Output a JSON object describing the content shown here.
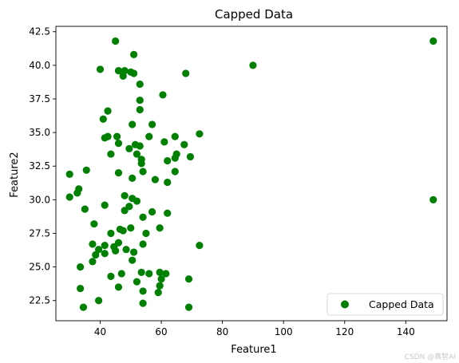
{
  "chart_data": {
    "type": "scatter",
    "title": "Capped Data",
    "xlabel": "Feature1",
    "ylabel": "Feature2",
    "xlim": [
      25.5,
      153.5
    ],
    "ylim": [
      21.0,
      42.9
    ],
    "xticks": [
      40,
      60,
      80,
      100,
      120,
      140
    ],
    "yticks": [
      22.5,
      25.0,
      27.5,
      30.0,
      32.5,
      35.0,
      37.5,
      40.0,
      42.5
    ],
    "xtick_labels": [
      "40",
      "60",
      "80",
      "100",
      "120",
      "140"
    ],
    "ytick_labels": [
      "22.5",
      "25.0",
      "27.5",
      "30.0",
      "32.5",
      "35.0",
      "37.5",
      "40.0",
      "42.5"
    ],
    "grid": false,
    "legend_position": "bottom-right",
    "series": [
      {
        "name": "Capped Data",
        "color": "#008000",
        "marker": "circle",
        "points": [
          [
            45,
            41.8
          ],
          [
            51,
            40.8
          ],
          [
            149,
            41.8
          ],
          [
            90,
            40.0
          ],
          [
            40,
            39.7
          ],
          [
            46,
            39.6
          ],
          [
            48,
            39.6
          ],
          [
            50,
            39.5
          ],
          [
            51,
            39.4
          ],
          [
            68,
            39.4
          ],
          [
            47.5,
            39.2
          ],
          [
            53,
            38.6
          ],
          [
            60.5,
            37.8
          ],
          [
            53,
            37.4
          ],
          [
            53,
            36.7
          ],
          [
            42.5,
            36.6
          ],
          [
            41,
            36.0
          ],
          [
            50.5,
            35.6
          ],
          [
            57,
            35.6
          ],
          [
            45.5,
            34.7
          ],
          [
            41.5,
            34.6
          ],
          [
            42.5,
            34.7
          ],
          [
            56,
            34.7
          ],
          [
            64.5,
            34.7
          ],
          [
            72.5,
            34.9
          ],
          [
            46,
            34.2
          ],
          [
            51.5,
            34.1
          ],
          [
            53,
            34.0
          ],
          [
            61,
            34.3
          ],
          [
            67.5,
            34.1
          ],
          [
            49.5,
            33.8
          ],
          [
            43.5,
            33.4
          ],
          [
            52,
            33.4
          ],
          [
            53.5,
            33.0
          ],
          [
            64.5,
            33.1
          ],
          [
            65,
            33.4
          ],
          [
            69.5,
            33.2
          ],
          [
            53.5,
            32.7
          ],
          [
            62,
            32.9
          ],
          [
            30,
            31.9
          ],
          [
            35.5,
            32.2
          ],
          [
            46,
            32.0
          ],
          [
            54,
            32.1
          ],
          [
            64.5,
            32.1
          ],
          [
            50.5,
            31.6
          ],
          [
            58,
            31.5
          ],
          [
            62,
            31.3
          ],
          [
            33,
            30.8
          ],
          [
            32.5,
            30.5
          ],
          [
            30,
            30.2
          ],
          [
            48,
            30.3
          ],
          [
            50.5,
            30.1
          ],
          [
            52,
            29.9
          ],
          [
            149,
            30.0
          ],
          [
            41.5,
            29.6
          ],
          [
            49.5,
            29.5
          ],
          [
            48,
            29.2
          ],
          [
            35,
            29.3
          ],
          [
            57,
            29.1
          ],
          [
            62,
            29.0
          ],
          [
            54,
            28.7
          ],
          [
            38,
            28.2
          ],
          [
            59.5,
            27.9
          ],
          [
            50,
            27.9
          ],
          [
            46.5,
            27.8
          ],
          [
            47.5,
            27.7
          ],
          [
            43.5,
            27.5
          ],
          [
            55,
            27.5
          ],
          [
            37.5,
            26.7
          ],
          [
            41.5,
            26.6
          ],
          [
            44.5,
            26.5
          ],
          [
            54,
            26.7
          ],
          [
            72.5,
            26.6
          ],
          [
            39.5,
            26.3
          ],
          [
            45,
            26.2
          ],
          [
            48.5,
            26.3
          ],
          [
            51,
            26.1
          ],
          [
            38.5,
            25.9
          ],
          [
            41.5,
            26.0
          ],
          [
            37.5,
            25.4
          ],
          [
            50.5,
            25.5
          ],
          [
            46,
            26.8
          ],
          [
            33.5,
            25.0
          ],
          [
            53.5,
            24.6
          ],
          [
            59.5,
            24.6
          ],
          [
            43.5,
            24.3
          ],
          [
            47,
            24.5
          ],
          [
            56,
            24.5
          ],
          [
            61.5,
            24.5
          ],
          [
            52,
            23.9
          ],
          [
            60,
            24.1
          ],
          [
            69,
            24.1
          ],
          [
            46,
            23.5
          ],
          [
            59.5,
            23.6
          ],
          [
            33.5,
            23.4
          ],
          [
            54,
            23.2
          ],
          [
            59,
            23.1
          ],
          [
            39.5,
            22.5
          ],
          [
            54,
            22.3
          ],
          [
            34.5,
            22.0
          ],
          [
            69,
            22.0
          ]
        ]
      }
    ]
  },
  "watermark": "CSDN @真智AI"
}
